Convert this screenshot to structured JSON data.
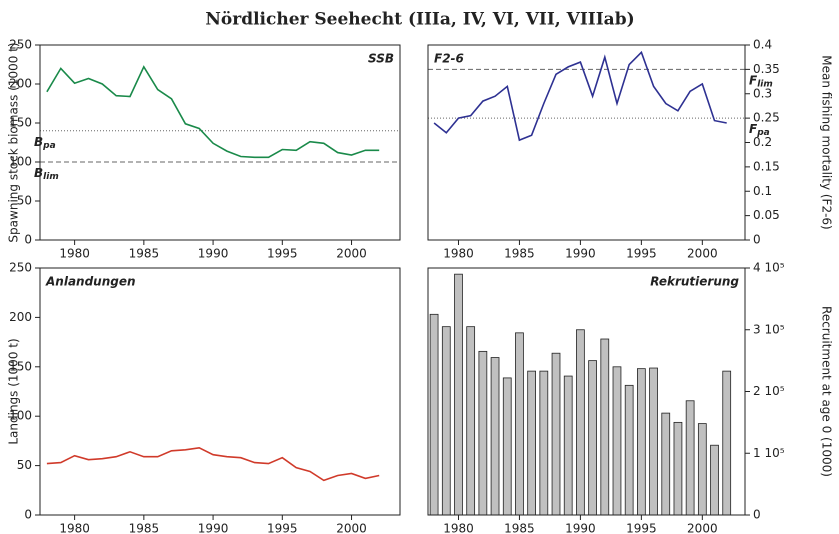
{
  "title": "Nördlicher Seehecht  (IIIa, IV, VI, VII, VIIIab)",
  "chart_data": [
    {
      "type": "line",
      "label": "SSB",
      "ylabel": "Spawning stock biomass (1000 t)",
      "yaxis_side": "left",
      "color": "#1a8a4a",
      "x": [
        1978,
        1979,
        1980,
        1981,
        1982,
        1983,
        1984,
        1985,
        1986,
        1987,
        1988,
        1989,
        1990,
        1991,
        1992,
        1993,
        1994,
        1995,
        1996,
        1997,
        1998,
        1999,
        2000,
        2001,
        2002
      ],
      "values": [
        190,
        220,
        201,
        207,
        200,
        185,
        184,
        222,
        193,
        181,
        149,
        143,
        124,
        114,
        107,
        106,
        106,
        116,
        115,
        126,
        124,
        112,
        109,
        115,
        115
      ],
      "xlim": [
        1977.5,
        2003.5
      ],
      "xticks": [
        1980,
        1985,
        1990,
        1995,
        2000
      ],
      "ylim": [
        0,
        250
      ],
      "yticks": [
        0,
        50,
        100,
        150,
        200,
        250
      ],
      "reference_lines": [
        {
          "value": 140,
          "label": "B",
          "subscript": "pa",
          "style": "dotted"
        },
        {
          "value": 100,
          "label": "B",
          "subscript": "lim",
          "style": "dashed"
        }
      ]
    },
    {
      "type": "line",
      "label": "F2-6",
      "ylabel": "Mean fishing mortality (F2-6)",
      "yaxis_side": "right",
      "color": "#2e3192",
      "x": [
        1978,
        1979,
        1980,
        1981,
        1982,
        1983,
        1984,
        1985,
        1986,
        1987,
        1988,
        1989,
        1990,
        1991,
        1992,
        1993,
        1994,
        1995,
        1996,
        1997,
        1998,
        1999,
        2000,
        2001,
        2002
      ],
      "values": [
        0.24,
        0.22,
        0.25,
        0.255,
        0.285,
        0.295,
        0.315,
        0.205,
        0.215,
        0.28,
        0.34,
        0.355,
        0.365,
        0.295,
        0.375,
        0.28,
        0.36,
        0.385,
        0.315,
        0.28,
        0.265,
        0.305,
        0.32,
        0.245,
        0.24
      ],
      "xlim": [
        1977.5,
        2003.5
      ],
      "xticks": [
        1980,
        1985,
        1990,
        1995,
        2000
      ],
      "ylim": [
        0,
        0.4
      ],
      "yticks": [
        0,
        0.05,
        0.1,
        0.15,
        0.2,
        0.25,
        0.3,
        0.35,
        0.4
      ],
      "reference_lines": [
        {
          "value": 0.35,
          "label": "F",
          "subscript": "lim",
          "style": "dashed"
        },
        {
          "value": 0.25,
          "label": "F",
          "subscript": "pa",
          "style": "dotted"
        }
      ]
    },
    {
      "type": "line",
      "label": "Anlandungen",
      "ylabel": "Landings (1000 t)",
      "yaxis_side": "left",
      "color": "#d03a2a",
      "x": [
        1978,
        1979,
        1980,
        1981,
        1982,
        1983,
        1984,
        1985,
        1986,
        1987,
        1988,
        1989,
        1990,
        1991,
        1992,
        1993,
        1994,
        1995,
        1996,
        1997,
        1998,
        1999,
        2000,
        2001,
        2002
      ],
      "values": [
        52,
        53,
        60,
        56,
        57,
        59,
        64,
        59,
        59,
        65,
        66,
        68,
        61,
        59,
        58,
        53,
        52,
        58,
        48,
        44,
        35,
        40,
        42,
        37,
        40
      ],
      "xlim": [
        1977.5,
        2003.5
      ],
      "xticks": [
        1980,
        1985,
        1990,
        1995,
        2000
      ],
      "ylim": [
        0,
        250
      ],
      "yticks": [
        0,
        50,
        100,
        150,
        200,
        250
      ]
    },
    {
      "type": "bar",
      "label": "Rekrutierung",
      "ylabel": "Recruitment at age 0 (1000)",
      "yaxis_side": "right",
      "color": "#c0c0c0",
      "x": [
        1978,
        1979,
        1980,
        1981,
        1982,
        1983,
        1984,
        1985,
        1986,
        1987,
        1988,
        1989,
        1990,
        1991,
        1992,
        1993,
        1994,
        1995,
        1996,
        1997,
        1998,
        1999,
        2000,
        2001,
        2002
      ],
      "values": [
        325000,
        305000,
        390000,
        305000,
        265000,
        255000,
        222000,
        295000,
        233000,
        233000,
        262000,
        225000,
        300000,
        250000,
        285000,
        240000,
        210000,
        237000,
        238000,
        165000,
        150000,
        185000,
        148000,
        113000,
        233000
      ],
      "xlim": [
        1977.5,
        2003.5
      ],
      "xticks": [
        1980,
        1985,
        1990,
        1995,
        2000
      ],
      "ylim": [
        0,
        400000
      ],
      "yticks": [
        0,
        {
          "value": 100000,
          "label": "1 10⁵"
        },
        {
          "value": 200000,
          "label": "2 10⁵"
        },
        {
          "value": 300000,
          "label": "3 10⁵"
        },
        {
          "value": 400000,
          "label": "4 10⁵"
        }
      ]
    }
  ]
}
